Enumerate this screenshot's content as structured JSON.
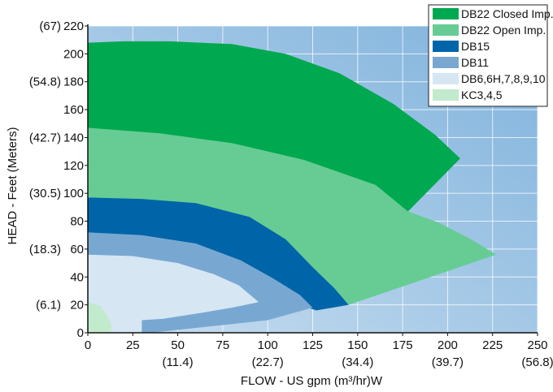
{
  "chart_data": {
    "type": "area",
    "xlabel": "FLOW - US gpm (m³/hr)W",
    "ylabel": "HEAD - Feet (Meters)",
    "xlim": [
      0,
      250
    ],
    "ylim": [
      0,
      220
    ],
    "x_ticks": [
      "0",
      "25",
      "50",
      "75",
      "100",
      "125",
      "150",
      "175",
      "200",
      "225",
      "250"
    ],
    "y_ticks": [
      "0",
      "20",
      "40",
      "60",
      "80",
      "100",
      "120",
      "140",
      "160",
      "180",
      "200",
      "220"
    ],
    "x_secondary_ticks": [
      {
        "at": 50,
        "label": "(11.4)"
      },
      {
        "at": 100,
        "label": "(22.7)"
      },
      {
        "at": 150,
        "label": "(34.4)"
      },
      {
        "at": 200,
        "label": "(39.7)"
      },
      {
        "at": 250,
        "label": "(56.8)"
      }
    ],
    "y_secondary_ticks": [
      {
        "at": 20,
        "label": "(6.1)"
      },
      {
        "at": 60,
        "label": "(18.3)"
      },
      {
        "at": 100,
        "label": "(30.5)"
      },
      {
        "at": 140,
        "label": "(42.7)"
      },
      {
        "at": 180,
        "label": "(54.8)"
      },
      {
        "at": 220,
        "label": "(67)"
      }
    ],
    "grid": true,
    "legend_position": "top-right",
    "background_gradient": [
      "#c9def0",
      "#7fb2dc"
    ],
    "gridline_color": "#ffffff",
    "series": [
      {
        "name": "DB22 Closed Imp.",
        "color": "#00a84f",
        "points": [
          [
            0,
            208
          ],
          [
            20,
            209
          ],
          [
            45,
            209
          ],
          [
            80,
            207
          ],
          [
            110,
            200
          ],
          [
            140,
            186
          ],
          [
            170,
            164
          ],
          [
            193,
            142
          ],
          [
            207,
            125
          ],
          [
            178,
            87
          ],
          [
            0,
            147
          ]
        ]
      },
      {
        "name": "DB22 Open Imp.",
        "color": "#66cc94",
        "points": [
          [
            0,
            147
          ],
          [
            40,
            143
          ],
          [
            80,
            136
          ],
          [
            120,
            124
          ],
          [
            160,
            106
          ],
          [
            178,
            87
          ],
          [
            195,
            79
          ],
          [
            213,
            67
          ],
          [
            227,
            56
          ],
          [
            145,
            20
          ],
          [
            0,
            98
          ]
        ]
      },
      {
        "name": "DB15",
        "color": "#0065a8",
        "points": [
          [
            0,
            97
          ],
          [
            30,
            96
          ],
          [
            60,
            93
          ],
          [
            90,
            83
          ],
          [
            110,
            67
          ],
          [
            125,
            47
          ],
          [
            137,
            32
          ],
          [
            145,
            20
          ],
          [
            127,
            16
          ],
          [
            0,
            72
          ]
        ]
      },
      {
        "name": "DB11",
        "color": "#78a8d2",
        "points": [
          [
            0,
            72
          ],
          [
            30,
            70
          ],
          [
            60,
            64
          ],
          [
            85,
            52
          ],
          [
            103,
            39
          ],
          [
            118,
            27
          ],
          [
            125,
            18
          ],
          [
            100,
            9
          ],
          [
            35,
            0
          ],
          [
            0,
            0
          ]
        ]
      },
      {
        "name": "DB6,6H,7,8,9,10",
        "color": "#d6e6f3",
        "points": [
          [
            0,
            56
          ],
          [
            25,
            55
          ],
          [
            50,
            50
          ],
          [
            70,
            42
          ],
          [
            84,
            34
          ],
          [
            95,
            22
          ],
          [
            80,
            18
          ],
          [
            62,
            14
          ],
          [
            42,
            10
          ],
          [
            30,
            9
          ],
          [
            30,
            0
          ],
          [
            0,
            0
          ]
        ]
      },
      {
        "name": "KC3,4,5",
        "color": "#c2eacd",
        "points": [
          [
            0,
            22
          ],
          [
            7,
            19
          ],
          [
            11,
            12
          ],
          [
            13,
            6
          ],
          [
            13,
            0
          ],
          [
            0,
            0
          ]
        ]
      }
    ]
  }
}
